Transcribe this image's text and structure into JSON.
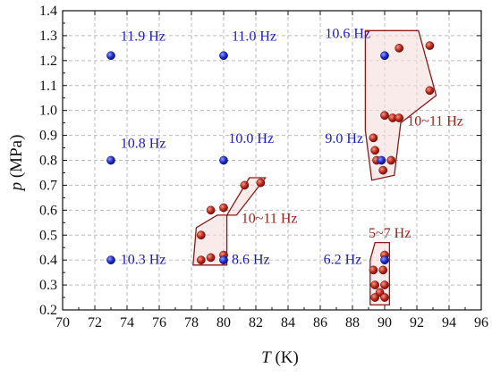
{
  "chart_data": {
    "type": "scatter",
    "title": "",
    "xlabel": {
      "var": "T",
      "unit": " (K)"
    },
    "ylabel": {
      "var": "p",
      "unit": " (MPa)"
    },
    "xlim": [
      70,
      96
    ],
    "ylim": [
      0.2,
      1.4
    ],
    "x_ticks": [
      "70",
      "72",
      "74",
      "76",
      "78",
      "80",
      "82",
      "84",
      "86",
      "88",
      "90",
      "92",
      "94",
      "96"
    ],
    "y_ticks": [
      "0.2",
      "0.3",
      "0.4",
      "0.5",
      "0.6",
      "0.7",
      "0.8",
      "0.9",
      "1.0",
      "1.1",
      "1.2",
      "1.3",
      "1.4"
    ],
    "grid": true,
    "grid_style": "dashed",
    "colors": {
      "blue": "#1f2fd6",
      "red": "#c0281e",
      "region_stroke": "#8b1a1a",
      "region_fill": "#f6dede",
      "axis": "#111111",
      "grid": "#bbbbbb"
    },
    "series": [
      {
        "points": [
          {
            "x": 73,
            "y": 1.22
          },
          {
            "x": 80,
            "y": 1.22
          },
          {
            "x": 90,
            "y": 1.22
          },
          {
            "x": 73,
            "y": 0.8
          },
          {
            "x": 80,
            "y": 0.8
          },
          {
            "x": 89.8,
            "y": 0.8
          },
          {
            "x": 73,
            "y": 0.4
          },
          {
            "x": 80,
            "y": 0.4
          },
          {
            "x": 90,
            "y": 0.4
          }
        ]
      },
      {
        "points": [
          {
            "x": 78.6,
            "y": 0.5
          },
          {
            "x": 78.6,
            "y": 0.4
          },
          {
            "x": 79.2,
            "y": 0.41
          },
          {
            "x": 80.0,
            "y": 0.42
          },
          {
            "x": 79.2,
            "y": 0.6
          },
          {
            "x": 80.0,
            "y": 0.61
          },
          {
            "x": 81.3,
            "y": 0.7
          },
          {
            "x": 82.3,
            "y": 0.71
          },
          {
            "x": 89.3,
            "y": 0.89
          },
          {
            "x": 89.4,
            "y": 0.84
          },
          {
            "x": 89.5,
            "y": 0.8
          },
          {
            "x": 89.9,
            "y": 0.76
          },
          {
            "x": 90.4,
            "y": 0.8
          },
          {
            "x": 90.0,
            "y": 0.98
          },
          {
            "x": 90.5,
            "y": 0.97
          },
          {
            "x": 90.9,
            "y": 0.97
          },
          {
            "x": 90.9,
            "y": 1.25
          },
          {
            "x": 92.8,
            "y": 1.26
          },
          {
            "x": 92.8,
            "y": 1.08
          },
          {
            "x": 89.3,
            "y": 0.36
          },
          {
            "x": 89.9,
            "y": 0.36
          },
          {
            "x": 90.0,
            "y": 0.42
          },
          {
            "x": 89.4,
            "y": 0.3
          },
          {
            "x": 90.0,
            "y": 0.3
          },
          {
            "x": 89.7,
            "y": 0.27
          },
          {
            "x": 89.4,
            "y": 0.25
          },
          {
            "x": 90.0,
            "y": 0.25
          }
        ]
      }
    ],
    "regions": [
      {
        "name": "region-low-T",
        "points": [
          [
            78.3,
            0.53
          ],
          [
            78.1,
            0.38
          ],
          [
            80.2,
            0.38
          ],
          [
            80.2,
            0.58
          ],
          [
            81.6,
            0.73
          ],
          [
            82.6,
            0.73
          ],
          [
            80.8,
            0.58
          ],
          [
            79.6,
            0.58
          ]
        ]
      },
      {
        "name": "region-high-p",
        "points": [
          [
            88.8,
            1.32
          ],
          [
            92.1,
            1.32
          ],
          [
            93.2,
            1.06
          ],
          [
            91.0,
            0.95
          ],
          [
            90.6,
            0.74
          ],
          [
            89.2,
            0.72
          ],
          [
            88.8,
            0.92
          ],
          [
            88.8,
            1.32
          ]
        ]
      },
      {
        "name": "region-low-p",
        "points": [
          [
            89.1,
            0.4
          ],
          [
            89.4,
            0.47
          ],
          [
            90.3,
            0.47
          ],
          [
            90.3,
            0.22
          ],
          [
            89.1,
            0.22
          ]
        ]
      }
    ],
    "annotations": [
      {
        "text": "11.9 Hz",
        "x": 73.6,
        "y": 1.28,
        "color": "blue"
      },
      {
        "text": "11.0 Hz",
        "x": 80.5,
        "y": 1.28,
        "color": "blue"
      },
      {
        "text": "10.6 Hz",
        "x": 86.3,
        "y": 1.29,
        "color": "blue"
      },
      {
        "text": "10.8 Hz",
        "x": 73.6,
        "y": 0.85,
        "color": "blue"
      },
      {
        "text": "10.0 Hz",
        "x": 80.3,
        "y": 0.87,
        "color": "blue"
      },
      {
        "text": "9.0 Hz",
        "x": 86.3,
        "y": 0.87,
        "color": "blue"
      },
      {
        "text": "10.3 Hz",
        "x": 73.6,
        "y": 0.385,
        "color": "blue"
      },
      {
        "text": "8.6 Hz",
        "x": 80.5,
        "y": 0.385,
        "color": "blue"
      },
      {
        "text": "6.2 Hz",
        "x": 86.2,
        "y": 0.385,
        "color": "blue"
      },
      {
        "text": "10~11 Hz",
        "x": 91.4,
        "y": 0.94,
        "color": "red"
      },
      {
        "text": "10~11 Hz",
        "x": 81.1,
        "y": 0.55,
        "color": "red"
      },
      {
        "text": "5~7 Hz",
        "x": 89.0,
        "y": 0.49,
        "color": "red"
      }
    ]
  }
}
